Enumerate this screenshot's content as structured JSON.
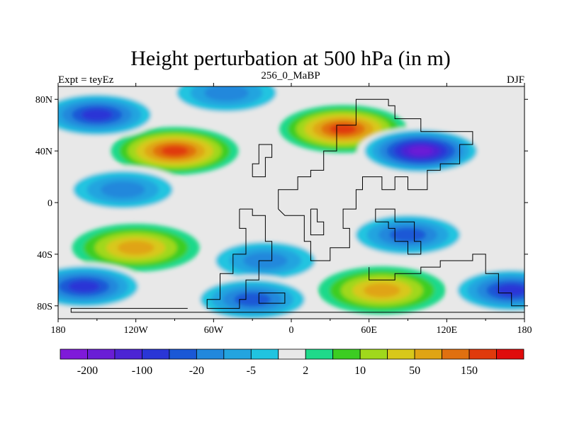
{
  "chart_data": {
    "type": "heatmap",
    "title": "Height perturbation at 500 hPa (in m)",
    "subtitle_left": "Expt = teyEz",
    "subtitle_center": "256_0_MaBP",
    "subtitle_right": "DJF",
    "xlim": [
      -180,
      180
    ],
    "ylim": [
      -90,
      90
    ],
    "xticks": [
      {
        "value": -180,
        "label": "180"
      },
      {
        "value": -120,
        "label": "120W"
      },
      {
        "value": -60,
        "label": "60W"
      },
      {
        "value": 0,
        "label": "0"
      },
      {
        "value": 60,
        "label": "60E"
      },
      {
        "value": 120,
        "label": "120E"
      },
      {
        "value": 180,
        "label": "180"
      }
    ],
    "yticks": [
      {
        "value": 80,
        "label": "80N"
      },
      {
        "value": 40,
        "label": "40N"
      },
      {
        "value": 0,
        "label": "0"
      },
      {
        "value": -40,
        "label": "40S"
      },
      {
        "value": -80,
        "label": "80S"
      }
    ],
    "levels": [
      -200,
      -150,
      -100,
      -50,
      -20,
      -10,
      -5,
      -2,
      2,
      5,
      10,
      20,
      50,
      100,
      150,
      200
    ],
    "level_labels": [
      {
        "index": 1,
        "label": "-200"
      },
      {
        "index": 3,
        "label": "-100"
      },
      {
        "index": 5,
        "label": "-20"
      },
      {
        "index": 7,
        "label": "-5"
      },
      {
        "index": 9,
        "label": "2"
      },
      {
        "index": 11,
        "label": "10"
      },
      {
        "index": 13,
        "label": "50"
      },
      {
        "index": 15,
        "label": "150"
      }
    ],
    "colors": [
      "#7f1ad9",
      "#6a1ed6",
      "#4c24d4",
      "#2a36d6",
      "#1a58d6",
      "#2288dc",
      "#23a4df",
      "#20c4e0",
      "#e8e8e8",
      "#1fd98a",
      "#3ccd22",
      "#a0d81c",
      "#d8c81a",
      "#e0a414",
      "#e07010",
      "#e03a0c",
      "#e00c0c"
    ],
    "anomalies": [
      {
        "name": "nh-midlat-atlantic-high",
        "lon": -90,
        "lat": 40,
        "value": 160
      },
      {
        "name": "europe-high",
        "lon": 40,
        "lat": 57,
        "value": 150
      },
      {
        "name": "asia-low",
        "lon": 100,
        "lat": 40,
        "value": -200
      },
      {
        "name": "npacific-low",
        "lon": -150,
        "lat": 68,
        "value": -110
      },
      {
        "name": "arctic-low",
        "lon": -50,
        "lat": 85,
        "value": -30
      },
      {
        "name": "tropical-pacific-low",
        "lon": -130,
        "lat": 10,
        "value": -30
      },
      {
        "name": "sh-subtropical-high",
        "lon": -120,
        "lat": -35,
        "value": 70
      },
      {
        "name": "indian-ocean-low",
        "lon": 90,
        "lat": -25,
        "value": -90
      },
      {
        "name": "south-atlantic-low",
        "lon": -20,
        "lat": -45,
        "value": -30
      },
      {
        "name": "southern-high",
        "lon": 70,
        "lat": -68,
        "value": 90
      },
      {
        "name": "antarctic-low",
        "lon": -30,
        "lat": -75,
        "value": -60
      },
      {
        "name": "sh-west-low",
        "lon": -160,
        "lat": -65,
        "value": -120
      },
      {
        "name": "sh-east-low",
        "lon": 170,
        "lat": -68,
        "value": -110
      }
    ]
  }
}
